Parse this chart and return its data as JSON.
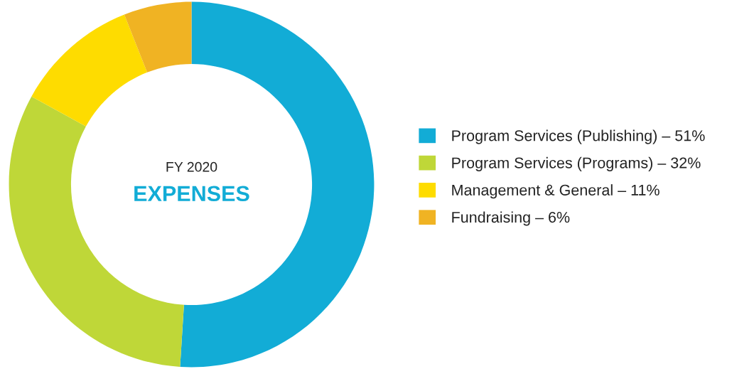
{
  "chart_data": {
    "type": "donut",
    "subtitle": "FY 2020",
    "title": "EXPENSES",
    "categories": [
      "Program Services (Publishing) – 51%",
      "Program Services (Programs) – 32%",
      "Management & General – 11%",
      "Fundraising – 6%"
    ],
    "values": [
      51,
      32,
      11,
      6
    ],
    "colors": [
      "#12acd6",
      "#bfd738",
      "#fedc00",
      "#f0b323"
    ],
    "legend": "right"
  }
}
